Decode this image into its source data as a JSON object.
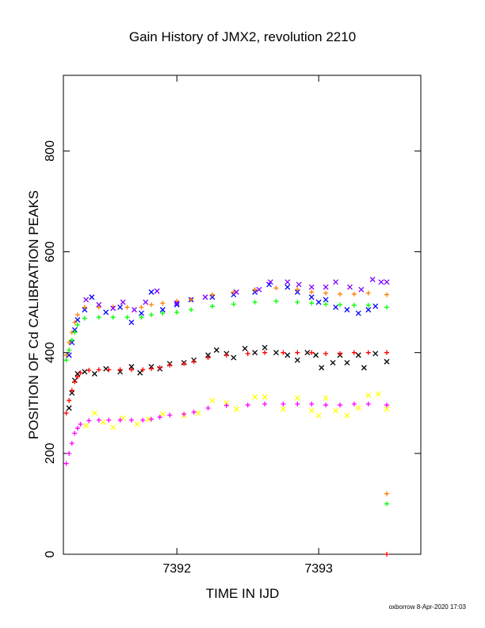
{
  "chart_data": {
    "type": "scatter",
    "title": "Gain History of JMX2, revolution 2210",
    "xlabel": "TIME IN IJD",
    "ylabel": "POSITION OF Cd CALIBRATION PEAKS",
    "xlim": [
      7391.2,
      7393.72
    ],
    "ylim": [
      0,
      950
    ],
    "x_ticks": [
      7392,
      7393
    ],
    "x_tick_labels": [
      "7392",
      "7393"
    ],
    "y_ticks": [
      0,
      200,
      400,
      600,
      800
    ],
    "y_tick_labels": [
      "0",
      "200",
      "400",
      "600",
      "800"
    ],
    "grid": false,
    "footer": "oxborrow  8-Apr-2020 17:03",
    "series": [
      {
        "color": "#000000",
        "marker": "x",
        "points": [
          [
            7391.24,
            290
          ],
          [
            7391.26,
            320
          ],
          [
            7391.28,
            345
          ],
          [
            7391.3,
            358
          ],
          [
            7391.35,
            362
          ],
          [
            7391.42,
            358
          ],
          [
            7391.5,
            368
          ],
          [
            7391.6,
            362
          ],
          [
            7391.68,
            372
          ],
          [
            7391.74,
            360
          ],
          [
            7391.82,
            372
          ],
          [
            7391.88,
            368
          ],
          [
            7391.95,
            378
          ],
          [
            7392.05,
            380
          ],
          [
            7392.12,
            385
          ],
          [
            7392.22,
            395
          ],
          [
            7392.28,
            405
          ],
          [
            7392.35,
            398
          ],
          [
            7392.4,
            390
          ],
          [
            7392.48,
            408
          ],
          [
            7392.55,
            400
          ],
          [
            7392.62,
            410
          ],
          [
            7392.7,
            400
          ],
          [
            7392.78,
            395
          ],
          [
            7392.85,
            385
          ],
          [
            7392.92,
            400
          ],
          [
            7392.98,
            395
          ],
          [
            7393.02,
            370
          ],
          [
            7393.1,
            380
          ],
          [
            7393.15,
            395
          ],
          [
            7393.2,
            380
          ],
          [
            7393.28,
            395
          ],
          [
            7393.32,
            370
          ],
          [
            7393.4,
            398
          ],
          [
            7393.48,
            382
          ]
        ]
      },
      {
        "color": "#ff0000",
        "marker": "+",
        "points": [
          [
            7391.22,
            280
          ],
          [
            7391.24,
            305
          ],
          [
            7391.26,
            325
          ],
          [
            7391.28,
            342
          ],
          [
            7391.3,
            352
          ],
          [
            7391.32,
            360
          ],
          [
            7391.38,
            365
          ],
          [
            7391.45,
            366
          ],
          [
            7391.52,
            366
          ],
          [
            7391.6,
            366
          ],
          [
            7391.68,
            366
          ],
          [
            7391.76,
            366
          ],
          [
            7391.82,
            368
          ],
          [
            7391.88,
            370
          ],
          [
            7391.95,
            375
          ],
          [
            7392.05,
            378
          ],
          [
            7392.12,
            382
          ],
          [
            7392.22,
            390
          ],
          [
            7392.35,
            395
          ],
          [
            7392.5,
            398
          ],
          [
            7392.62,
            400
          ],
          [
            7392.75,
            400
          ],
          [
            7392.85,
            400
          ],
          [
            7392.95,
            400
          ],
          [
            7393.05,
            398
          ],
          [
            7393.15,
            398
          ],
          [
            7393.25,
            400
          ],
          [
            7393.35,
            400
          ],
          [
            7393.48,
            400
          ],
          [
            7393.48,
            0
          ]
        ]
      },
      {
        "color": "#0000ff",
        "marker": "x",
        "points": [
          [
            7391.24,
            395
          ],
          [
            7391.26,
            420
          ],
          [
            7391.28,
            445
          ],
          [
            7391.3,
            465
          ],
          [
            7391.35,
            485
          ],
          [
            7391.4,
            510
          ],
          [
            7391.5,
            480
          ],
          [
            7391.6,
            490
          ],
          [
            7391.68,
            460
          ],
          [
            7391.75,
            478
          ],
          [
            7391.82,
            520
          ],
          [
            7391.9,
            485
          ],
          [
            7392.0,
            495
          ],
          [
            7392.1,
            505
          ],
          [
            7392.25,
            510
          ],
          [
            7392.4,
            515
          ],
          [
            7392.55,
            520
          ],
          [
            7392.65,
            535
          ],
          [
            7392.78,
            530
          ],
          [
            7392.85,
            520
          ],
          [
            7392.95,
            510
          ],
          [
            7393.0,
            500
          ],
          [
            7393.05,
            505
          ],
          [
            7393.12,
            490
          ],
          [
            7393.2,
            485
          ],
          [
            7393.28,
            478
          ],
          [
            7393.35,
            485
          ],
          [
            7393.4,
            492
          ]
        ]
      },
      {
        "color": "#ff8000",
        "marker": "+",
        "points": [
          [
            7391.22,
            395
          ],
          [
            7391.24,
            420
          ],
          [
            7391.26,
            440
          ],
          [
            7391.28,
            460
          ],
          [
            7391.3,
            475
          ],
          [
            7391.35,
            490
          ],
          [
            7391.45,
            490
          ],
          [
            7391.55,
            491
          ],
          [
            7391.65,
            490
          ],
          [
            7391.75,
            490
          ],
          [
            7391.82,
            495
          ],
          [
            7391.9,
            498
          ],
          [
            7392.0,
            502
          ],
          [
            7392.1,
            505
          ],
          [
            7392.25,
            515
          ],
          [
            7392.4,
            520
          ],
          [
            7392.55,
            525
          ],
          [
            7392.7,
            528
          ],
          [
            7392.85,
            525
          ],
          [
            7392.95,
            520
          ],
          [
            7393.05,
            518
          ],
          [
            7393.15,
            516
          ],
          [
            7393.25,
            516
          ],
          [
            7393.35,
            518
          ],
          [
            7393.48,
            515
          ],
          [
            7393.48,
            120
          ]
        ]
      },
      {
        "color": "#00ff00",
        "marker": "+",
        "points": [
          [
            7391.22,
            385
          ],
          [
            7391.24,
            405
          ],
          [
            7391.26,
            425
          ],
          [
            7391.28,
            440
          ],
          [
            7391.3,
            455
          ],
          [
            7391.35,
            468
          ],
          [
            7391.45,
            470
          ],
          [
            7391.55,
            470
          ],
          [
            7391.65,
            470
          ],
          [
            7391.75,
            470
          ],
          [
            7391.82,
            475
          ],
          [
            7391.9,
            478
          ],
          [
            7392.0,
            480
          ],
          [
            7392.1,
            485
          ],
          [
            7392.25,
            492
          ],
          [
            7392.4,
            496
          ],
          [
            7392.55,
            500
          ],
          [
            7392.7,
            502
          ],
          [
            7392.85,
            500
          ],
          [
            7392.95,
            498
          ],
          [
            7393.05,
            496
          ],
          [
            7393.15,
            495
          ],
          [
            7393.25,
            494
          ],
          [
            7393.35,
            494
          ],
          [
            7393.48,
            490
          ],
          [
            7393.48,
            100
          ]
        ]
      },
      {
        "color": "#8000ff",
        "marker": "x",
        "points": [
          [
            7391.36,
            505
          ],
          [
            7391.45,
            495
          ],
          [
            7391.55,
            488
          ],
          [
            7391.62,
            500
          ],
          [
            7391.7,
            485
          ],
          [
            7391.78,
            500
          ],
          [
            7391.86,
            522
          ],
          [
            7392.0,
            498
          ],
          [
            7392.2,
            510
          ],
          [
            7392.42,
            520
          ],
          [
            7392.58,
            525
          ],
          [
            7392.66,
            540
          ],
          [
            7392.78,
            540
          ],
          [
            7392.86,
            535
          ],
          [
            7392.95,
            530
          ],
          [
            7393.05,
            530
          ],
          [
            7393.12,
            540
          ],
          [
            7393.22,
            530
          ],
          [
            7393.3,
            525
          ],
          [
            7393.38,
            545
          ],
          [
            7393.44,
            540
          ],
          [
            7393.48,
            540
          ]
        ]
      },
      {
        "color": "#ffff00",
        "marker": "x",
        "points": [
          [
            7391.36,
            255
          ],
          [
            7391.42,
            280
          ],
          [
            7391.48,
            262
          ],
          [
            7391.55,
            252
          ],
          [
            7391.62,
            270
          ],
          [
            7391.72,
            258
          ],
          [
            7391.8,
            268
          ],
          [
            7391.9,
            278
          ],
          [
            7392.05,
            275
          ],
          [
            7392.15,
            280
          ],
          [
            7392.25,
            305
          ],
          [
            7392.35,
            300
          ],
          [
            7392.42,
            288
          ],
          [
            7392.55,
            312
          ],
          [
            7392.62,
            312
          ],
          [
            7392.75,
            288
          ],
          [
            7392.85,
            310
          ],
          [
            7392.95,
            285
          ],
          [
            7393.0,
            275
          ],
          [
            7393.05,
            310
          ],
          [
            7393.12,
            285
          ],
          [
            7393.2,
            275
          ],
          [
            7393.28,
            290
          ],
          [
            7393.35,
            315
          ],
          [
            7393.42,
            318
          ],
          [
            7393.48,
            288
          ]
        ]
      },
      {
        "color": "#ff00ff",
        "marker": "+",
        "points": [
          [
            7391.22,
            180
          ],
          [
            7391.24,
            200
          ],
          [
            7391.26,
            220
          ],
          [
            7391.28,
            240
          ],
          [
            7391.3,
            250
          ],
          [
            7391.32,
            258
          ],
          [
            7391.38,
            265
          ],
          [
            7391.45,
            266
          ],
          [
            7391.52,
            266
          ],
          [
            7391.6,
            266
          ],
          [
            7391.68,
            266
          ],
          [
            7391.76,
            266
          ],
          [
            7391.82,
            268
          ],
          [
            7391.88,
            272
          ],
          [
            7391.95,
            276
          ],
          [
            7392.05,
            278
          ],
          [
            7392.12,
            282
          ],
          [
            7392.22,
            290
          ],
          [
            7392.35,
            295
          ],
          [
            7392.5,
            296
          ],
          [
            7392.62,
            298
          ],
          [
            7392.75,
            298
          ],
          [
            7392.85,
            298
          ],
          [
            7392.95,
            298
          ],
          [
            7393.05,
            296
          ],
          [
            7393.15,
            296
          ],
          [
            7393.25,
            298
          ],
          [
            7393.35,
            298
          ],
          [
            7393.48,
            296
          ]
        ]
      }
    ]
  }
}
